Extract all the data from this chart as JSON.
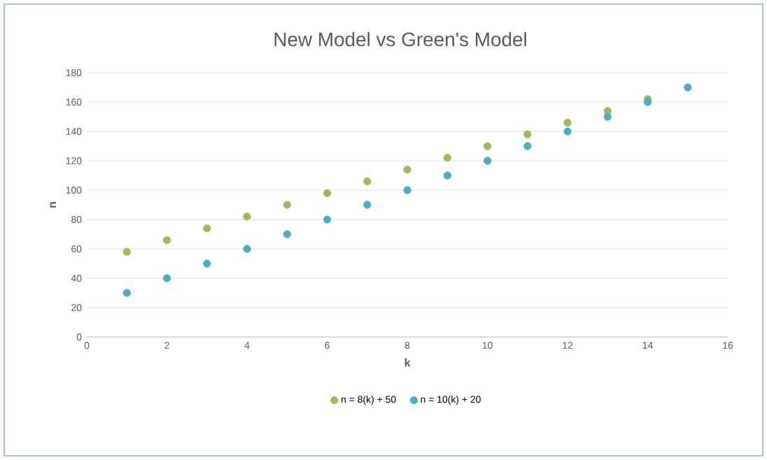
{
  "chart_data": {
    "type": "scatter",
    "title": "New Model vs Green's Model",
    "xlabel": "k",
    "ylabel": "n",
    "x": [
      1,
      2,
      3,
      4,
      5,
      6,
      7,
      8,
      9,
      10,
      11,
      12,
      13,
      14,
      15
    ],
    "series": [
      {
        "name": "n = 8(k) + 50",
        "color": "#9bbb59",
        "values": [
          58,
          66,
          74,
          82,
          90,
          98,
          106,
          114,
          122,
          130,
          138,
          146,
          154,
          162,
          null
        ]
      },
      {
        "name": "n = 10(k) + 20",
        "color": "#4bacc6",
        "values": [
          30,
          40,
          50,
          60,
          70,
          80,
          90,
          100,
          110,
          120,
          130,
          140,
          150,
          160,
          170
        ]
      }
    ],
    "xlim": [
      0,
      16
    ],
    "xticks": [
      0,
      2,
      4,
      6,
      8,
      10,
      12,
      14,
      16
    ],
    "ylim": [
      0,
      180
    ],
    "yticks": [
      0,
      20,
      40,
      60,
      80,
      100,
      120,
      140,
      160,
      180
    ],
    "grid": "y",
    "legend": "bottom",
    "marker": "circle"
  }
}
